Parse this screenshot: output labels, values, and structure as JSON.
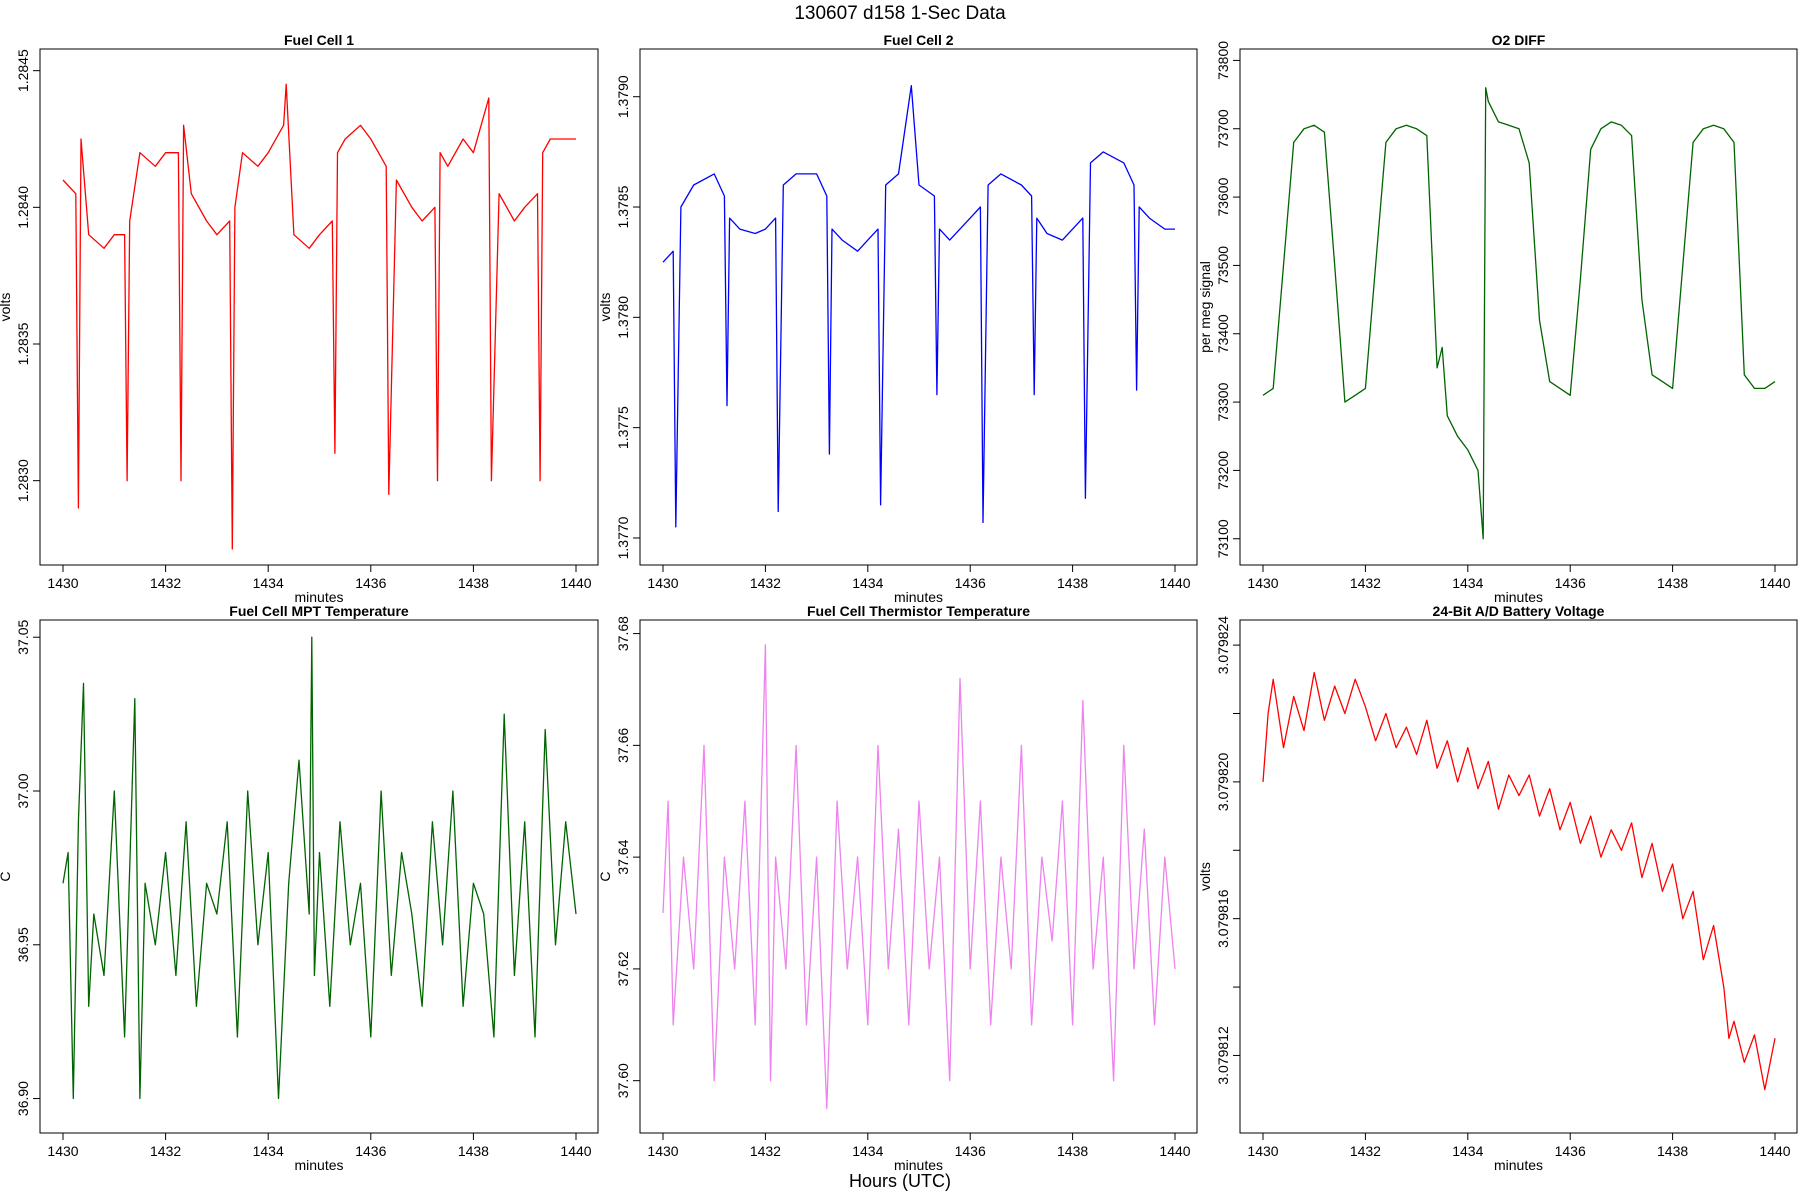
{
  "figure": {
    "suptitle": "130607   d158   1-Sec Data",
    "xlabel": "Hours (UTC)"
  },
  "chart_data": [
    {
      "type": "line",
      "title": "Fuel Cell 1",
      "xlabel": "minutes",
      "ylabel": "volts",
      "color": "#ff0000",
      "xlim": [
        1430,
        1440
      ],
      "ylim": [
        1.28275,
        1.28455
      ],
      "xticks": [
        1430,
        1432,
        1434,
        1436,
        1438,
        1440
      ],
      "yticks": [
        1.283,
        1.2835,
        1.284,
        1.2845
      ],
      "ytick_labels": [
        "1.2830",
        "1.2835",
        "1.2840",
        "1.2845"
      ],
      "x": [
        1430.0,
        1430.25,
        1430.3,
        1430.35,
        1430.5,
        1430.8,
        1431.0,
        1431.2,
        1431.25,
        1431.3,
        1431.5,
        1431.8,
        1432.0,
        1432.25,
        1432.3,
        1432.35,
        1432.5,
        1432.8,
        1433.0,
        1433.25,
        1433.3,
        1433.35,
        1433.5,
        1433.8,
        1434.0,
        1434.3,
        1434.35,
        1434.5,
        1434.8,
        1435.0,
        1435.25,
        1435.3,
        1435.35,
        1435.5,
        1435.8,
        1436.0,
        1436.3,
        1436.35,
        1436.5,
        1436.8,
        1437.0,
        1437.25,
        1437.3,
        1437.35,
        1437.5,
        1437.8,
        1438.0,
        1438.3,
        1438.35,
        1438.5,
        1438.8,
        1439.0,
        1439.25,
        1439.3,
        1439.35,
        1439.5,
        1439.8,
        1440.0
      ],
      "y": [
        1.2841,
        1.28405,
        1.2829,
        1.28425,
        1.2839,
        1.28385,
        1.2839,
        1.2839,
        1.283,
        1.28395,
        1.2842,
        1.28415,
        1.2842,
        1.2842,
        1.283,
        1.2843,
        1.28405,
        1.28395,
        1.2839,
        1.28395,
        1.28275,
        1.284,
        1.2842,
        1.28415,
        1.2842,
        1.2843,
        1.28445,
        1.2839,
        1.28385,
        1.2839,
        1.28395,
        1.2831,
        1.2842,
        1.28425,
        1.2843,
        1.28425,
        1.28415,
        1.28295,
        1.2841,
        1.284,
        1.28395,
        1.284,
        1.283,
        1.2842,
        1.28415,
        1.28425,
        1.2842,
        1.2844,
        1.283,
        1.28405,
        1.28395,
        1.284,
        1.28405,
        1.283,
        1.2842,
        1.28425,
        1.28425,
        1.28425
      ]
    },
    {
      "type": "line",
      "title": "Fuel Cell 2",
      "xlabel": "minutes",
      "ylabel": "volts",
      "color": "#0000ff",
      "xlim": [
        1430,
        1440
      ],
      "ylim": [
        1.37695,
        1.37918
      ],
      "xticks": [
        1430,
        1432,
        1434,
        1436,
        1438,
        1440
      ],
      "yticks": [
        1.377,
        1.3775,
        1.378,
        1.3785,
        1.379
      ],
      "ytick_labels": [
        "1.3770",
        "1.3775",
        "1.3780",
        "1.3785",
        "1.3790"
      ],
      "x": [
        1430.0,
        1430.2,
        1430.25,
        1430.35,
        1430.6,
        1431.0,
        1431.2,
        1431.25,
        1431.3,
        1431.5,
        1431.8,
        1432.0,
        1432.2,
        1432.25,
        1432.35,
        1432.6,
        1433.0,
        1433.2,
        1433.25,
        1433.3,
        1433.5,
        1433.8,
        1434.0,
        1434.2,
        1434.25,
        1434.35,
        1434.6,
        1434.85,
        1435.0,
        1435.3,
        1435.35,
        1435.4,
        1435.6,
        1436.0,
        1436.2,
        1436.25,
        1436.35,
        1436.6,
        1437.0,
        1437.2,
        1437.25,
        1437.3,
        1437.5,
        1437.8,
        1438.0,
        1438.2,
        1438.25,
        1438.35,
        1438.6,
        1439.0,
        1439.2,
        1439.25,
        1439.3,
        1439.5,
        1439.8,
        1440.0
      ],
      "y": [
        1.37825,
        1.3783,
        1.37705,
        1.3785,
        1.3786,
        1.37865,
        1.37855,
        1.3776,
        1.37845,
        1.3784,
        1.37838,
        1.3784,
        1.37845,
        1.37712,
        1.3786,
        1.37865,
        1.37865,
        1.37855,
        1.37738,
        1.3784,
        1.37835,
        1.3783,
        1.37835,
        1.3784,
        1.37715,
        1.3786,
        1.37865,
        1.37905,
        1.3786,
        1.37855,
        1.37765,
        1.3784,
        1.37835,
        1.37845,
        1.3785,
        1.37707,
        1.3786,
        1.37865,
        1.3786,
        1.37855,
        1.37765,
        1.37845,
        1.37838,
        1.37835,
        1.3784,
        1.37845,
        1.37718,
        1.3787,
        1.37875,
        1.3787,
        1.3786,
        1.37767,
        1.3785,
        1.37845,
        1.3784,
        1.3784
      ]
    },
    {
      "type": "line",
      "title": "O2 DIFF",
      "xlabel": "minutes",
      "ylabel": "per meg signal",
      "color": "#006400",
      "xlim": [
        1430,
        1440
      ],
      "ylim": [
        73085,
        73805
      ],
      "xticks": [
        1430,
        1432,
        1434,
        1436,
        1438,
        1440
      ],
      "yticks": [
        73100,
        73200,
        73300,
        73400,
        73500,
        73600,
        73700,
        73800
      ],
      "ytick_labels": [
        "73100",
        "73200",
        "73300",
        "73400",
        "73500",
        "73600",
        "73700",
        "73800"
      ],
      "x": [
        1430.0,
        1430.2,
        1430.4,
        1430.6,
        1430.8,
        1431.0,
        1431.2,
        1431.4,
        1431.6,
        1431.8,
        1432.0,
        1432.2,
        1432.4,
        1432.6,
        1432.8,
        1433.0,
        1433.2,
        1433.4,
        1433.5,
        1433.6,
        1433.8,
        1434.0,
        1434.2,
        1434.3,
        1434.35,
        1434.4,
        1434.6,
        1434.8,
        1435.0,
        1435.2,
        1435.4,
        1435.6,
        1435.8,
        1436.0,
        1436.2,
        1436.4,
        1436.6,
        1436.8,
        1437.0,
        1437.2,
        1437.4,
        1437.6,
        1437.8,
        1438.0,
        1438.2,
        1438.4,
        1438.6,
        1438.8,
        1439.0,
        1439.2,
        1439.4,
        1439.6,
        1439.8,
        1440.0
      ],
      "y": [
        73310,
        73320,
        73500,
        73680,
        73700,
        73705,
        73695,
        73500,
        73300,
        73310,
        73320,
        73500,
        73680,
        73700,
        73705,
        73700,
        73690,
        73350,
        73380,
        73280,
        73250,
        73230,
        73200,
        73100,
        73760,
        73740,
        73710,
        73705,
        73700,
        73650,
        73420,
        73330,
        73320,
        73310,
        73480,
        73670,
        73700,
        73710,
        73705,
        73690,
        73450,
        73340,
        73330,
        73320,
        73500,
        73680,
        73700,
        73705,
        73700,
        73680,
        73340,
        73320,
        73320,
        73330
      ]
    },
    {
      "type": "line",
      "title": "Fuel Cell MPT Temperature",
      "xlabel": "minutes",
      "ylabel": "C",
      "color": "#006400",
      "xlim": [
        1430,
        1440
      ],
      "ylim": [
        36.894,
        37.053
      ],
      "xticks": [
        1430,
        1432,
        1434,
        1436,
        1438,
        1440
      ],
      "yticks": [
        36.9,
        36.95,
        37.0,
        37.05
      ],
      "ytick_labels": [
        "36.90",
        "36.95",
        "37.00",
        "37.05"
      ],
      "x": [
        1430.0,
        1430.1,
        1430.2,
        1430.3,
        1430.4,
        1430.5,
        1430.6,
        1430.8,
        1431.0,
        1431.2,
        1431.4,
        1431.5,
        1431.6,
        1431.8,
        1432.0,
        1432.2,
        1432.4,
        1432.6,
        1432.8,
        1433.0,
        1433.2,
        1433.4,
        1433.6,
        1433.8,
        1434.0,
        1434.2,
        1434.4,
        1434.6,
        1434.8,
        1434.85,
        1434.9,
        1435.0,
        1435.2,
        1435.4,
        1435.6,
        1435.8,
        1436.0,
        1436.2,
        1436.4,
        1436.6,
        1436.8,
        1437.0,
        1437.2,
        1437.4,
        1437.6,
        1437.8,
        1438.0,
        1438.2,
        1438.4,
        1438.6,
        1438.8,
        1439.0,
        1439.2,
        1439.4,
        1439.6,
        1439.8,
        1440.0
      ],
      "y": [
        36.97,
        36.98,
        36.9,
        36.99,
        37.035,
        36.93,
        36.96,
        36.94,
        37.0,
        36.92,
        37.03,
        36.9,
        36.97,
        36.95,
        36.98,
        36.94,
        36.99,
        36.93,
        36.97,
        36.96,
        36.99,
        36.92,
        37.0,
        36.95,
        36.98,
        36.9,
        36.97,
        37.01,
        36.96,
        37.05,
        36.94,
        36.98,
        36.93,
        36.99,
        36.95,
        36.97,
        36.92,
        37.0,
        36.94,
        36.98,
        36.96,
        36.93,
        36.99,
        36.95,
        37.0,
        36.93,
        36.97,
        36.96,
        36.92,
        37.025,
        36.94,
        36.99,
        36.92,
        37.02,
        36.95,
        36.99,
        36.96
      ]
    },
    {
      "type": "line",
      "title": "Fuel Cell Thermistor Temperature",
      "xlabel": "minutes",
      "ylabel": "C",
      "color": "#ee82ee",
      "xlim": [
        1430,
        1440
      ],
      "ylim": [
        37.5935,
        37.681
      ],
      "xticks": [
        1430,
        1432,
        1434,
        1436,
        1438,
        1440
      ],
      "yticks": [
        37.6,
        37.62,
        37.64,
        37.66,
        37.68
      ],
      "ytick_labels": [
        "37.60",
        "37.62",
        "37.64",
        "37.66",
        "37.68"
      ],
      "x": [
        1430.0,
        1430.1,
        1430.2,
        1430.4,
        1430.6,
        1430.8,
        1431.0,
        1431.2,
        1431.4,
        1431.6,
        1431.8,
        1432.0,
        1432.1,
        1432.2,
        1432.4,
        1432.6,
        1432.8,
        1433.0,
        1433.2,
        1433.4,
        1433.6,
        1433.8,
        1434.0,
        1434.2,
        1434.4,
        1434.6,
        1434.8,
        1435.0,
        1435.2,
        1435.4,
        1435.6,
        1435.8,
        1436.0,
        1436.2,
        1436.4,
        1436.6,
        1436.8,
        1437.0,
        1437.2,
        1437.4,
        1437.6,
        1437.8,
        1438.0,
        1438.2,
        1438.4,
        1438.6,
        1438.8,
        1439.0,
        1439.2,
        1439.4,
        1439.6,
        1439.8,
        1440.0
      ],
      "y": [
        37.63,
        37.65,
        37.61,
        37.64,
        37.62,
        37.66,
        37.6,
        37.64,
        37.62,
        37.65,
        37.61,
        37.678,
        37.6,
        37.64,
        37.62,
        37.66,
        37.61,
        37.64,
        37.595,
        37.65,
        37.62,
        37.64,
        37.61,
        37.66,
        37.62,
        37.645,
        37.61,
        37.65,
        37.62,
        37.64,
        37.6,
        37.672,
        37.62,
        37.65,
        37.61,
        37.64,
        37.62,
        37.66,
        37.61,
        37.64,
        37.625,
        37.65,
        37.61,
        37.668,
        37.62,
        37.64,
        37.6,
        37.66,
        37.62,
        37.645,
        37.61,
        37.64,
        37.62
      ]
    },
    {
      "type": "line",
      "title": "24-Bit A/D Battery Voltage",
      "xlabel": "minutes",
      "ylabel": "volts",
      "color": "#ff0000",
      "xlim": [
        1430,
        1440
      ],
      "ylim": [
        3.0798102,
        3.0798245
      ],
      "xticks": [
        1430,
        1432,
        1434,
        1436,
        1438,
        1440
      ],
      "yticks": [
        3.079812,
        3.079814,
        3.079816,
        3.079818,
        3.07982,
        3.079822,
        3.079824
      ],
      "ytick_labels": [
        "3.079812",
        "",
        "3.079816",
        "",
        "3.079820",
        "",
        "3.079824"
      ],
      "x": [
        1430.0,
        1430.1,
        1430.2,
        1430.4,
        1430.6,
        1430.8,
        1431.0,
        1431.2,
        1431.4,
        1431.6,
        1431.8,
        1432.0,
        1432.2,
        1432.4,
        1432.6,
        1432.8,
        1433.0,
        1433.2,
        1433.4,
        1433.6,
        1433.8,
        1434.0,
        1434.2,
        1434.4,
        1434.6,
        1434.8,
        1435.0,
        1435.2,
        1435.4,
        1435.6,
        1435.8,
        1436.0,
        1436.2,
        1436.4,
        1436.6,
        1436.8,
        1437.0,
        1437.2,
        1437.4,
        1437.6,
        1437.8,
        1438.0,
        1438.2,
        1438.4,
        1438.6,
        1438.8,
        1439.0,
        1439.1,
        1439.2,
        1439.4,
        1439.6,
        1439.8,
        1440.0
      ],
      "y": [
        3.07982,
        3.079822,
        3.079823,
        3.079821,
        3.0798225,
        3.0798215,
        3.0798232,
        3.0798218,
        3.0798228,
        3.079822,
        3.079823,
        3.0798222,
        3.0798212,
        3.079822,
        3.079821,
        3.0798216,
        3.0798208,
        3.0798218,
        3.0798204,
        3.0798212,
        3.07982,
        3.079821,
        3.0798198,
        3.0798206,
        3.0798192,
        3.0798202,
        3.0798196,
        3.0798202,
        3.079819,
        3.0798198,
        3.0798186,
        3.0798194,
        3.0798182,
        3.079819,
        3.0798178,
        3.0798186,
        3.079818,
        3.0798188,
        3.0798172,
        3.0798182,
        3.0798168,
        3.0798176,
        3.079816,
        3.0798168,
        3.0798148,
        3.0798158,
        3.079814,
        3.0798125,
        3.079813,
        3.0798118,
        3.0798126,
        3.079811,
        3.0798125
      ]
    }
  ]
}
